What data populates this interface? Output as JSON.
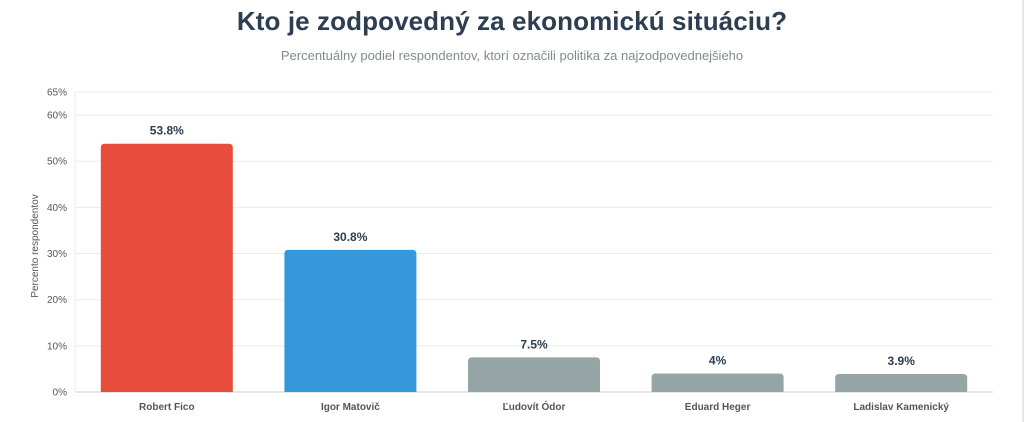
{
  "chart_data": {
    "type": "bar",
    "title": "Kto je zodpovedný za ekonomickú situáciu?",
    "subtitle": "Percentuálny podiel respondentov, ktorí označili politika za najzodpovednejšieho",
    "xlabel": "",
    "ylabel": "Percento respondentov",
    "categories": [
      "Robert Fico",
      "Igor Matovič",
      "Ľudovít Ódor",
      "Eduard Heger",
      "Ladislav Kamenický"
    ],
    "values": [
      53.8,
      30.8,
      7.5,
      4,
      3.9
    ],
    "value_labels": [
      "53.8%",
      "30.8%",
      "7.5%",
      "4%",
      "3.9%"
    ],
    "ylim": [
      0,
      65
    ],
    "yticks": [
      0,
      10,
      20,
      30,
      40,
      50,
      60,
      65
    ],
    "ytick_labels": [
      "0%",
      "10%",
      "20%",
      "30%",
      "40%",
      "50%",
      "60%",
      "65%"
    ],
    "grid": true,
    "colors": [
      "#e74c3c",
      "#3498db",
      "#95a5a6",
      "#95a5a6",
      "#95a5a6"
    ]
  },
  "theme": {
    "title_color": "#2c3e50",
    "subtitle_color": "#7f8c8d",
    "grid_color": "#ebebeb",
    "axis_color": "#cccccc",
    "tick_text_color": "#555555",
    "value_label_color": "#2c3e50"
  }
}
